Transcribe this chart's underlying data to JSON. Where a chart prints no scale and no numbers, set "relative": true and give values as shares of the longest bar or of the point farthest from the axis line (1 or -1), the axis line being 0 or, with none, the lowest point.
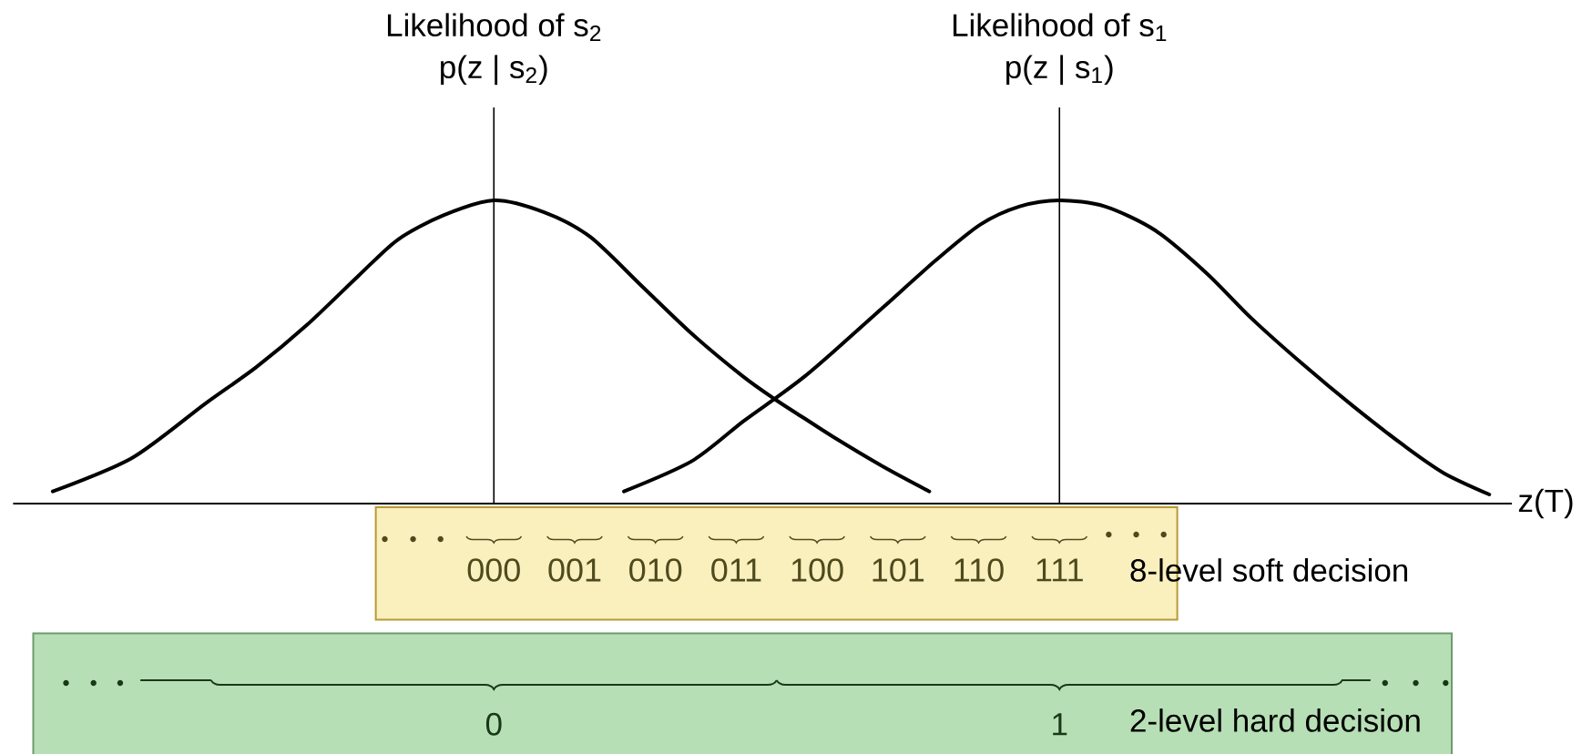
{
  "chart_data": {
    "type": "line",
    "relative": true,
    "xlabel": "z(T)",
    "xlim": [
      -0.85,
      1.8
    ],
    "xticks": [
      0,
      1
    ],
    "series": [
      {
        "color": "#000000",
        "x": [
          -0.78,
          -0.64,
          -0.51,
          -0.42,
          -0.33,
          -0.24,
          -0.17,
          -0.09,
          0,
          0.09,
          0.17,
          0.26,
          0.35,
          0.44,
          0.5,
          0.55,
          0.6,
          0.69,
          0.77
        ],
        "values": [
          0.04,
          0.15,
          0.33,
          0.45,
          0.59,
          0.75,
          0.87,
          0.95,
          1.0,
          0.96,
          0.88,
          0.72,
          0.56,
          0.42,
          0.34,
          0.28,
          0.22,
          0.12,
          0.04
        ]
      },
      {
        "color": "#000000",
        "x": [
          0.23,
          0.35,
          0.44,
          0.5,
          0.55,
          0.6,
          0.69,
          0.78,
          0.86,
          0.93,
          1,
          1.08,
          1.17,
          1.26,
          1.34,
          1.43,
          1.52,
          1.61,
          1.68,
          1.76
        ],
        "values": [
          0.04,
          0.14,
          0.27,
          0.35,
          0.42,
          0.5,
          0.65,
          0.8,
          0.92,
          0.98,
          1.0,
          0.98,
          0.9,
          0.76,
          0.61,
          0.46,
          0.32,
          0.19,
          0.1,
          0.03
        ]
      }
    ],
    "ref_lines": [
      {
        "axis": "x",
        "value": 0,
        "label": "Likelihood of s$_{2}$ p(z | s$_{2}$)"
      },
      {
        "axis": "x",
        "value": 1,
        "label": "Likelihood of s$_{1}$ p(z | s$_{1}$)"
      }
    ],
    "annotations": [
      "8-level soft decision",
      "2-level hard decision",
      "000",
      "001",
      "010",
      "011",
      "100",
      "101",
      "110",
      "111"
    ],
    "line_style": "solid"
  }
}
